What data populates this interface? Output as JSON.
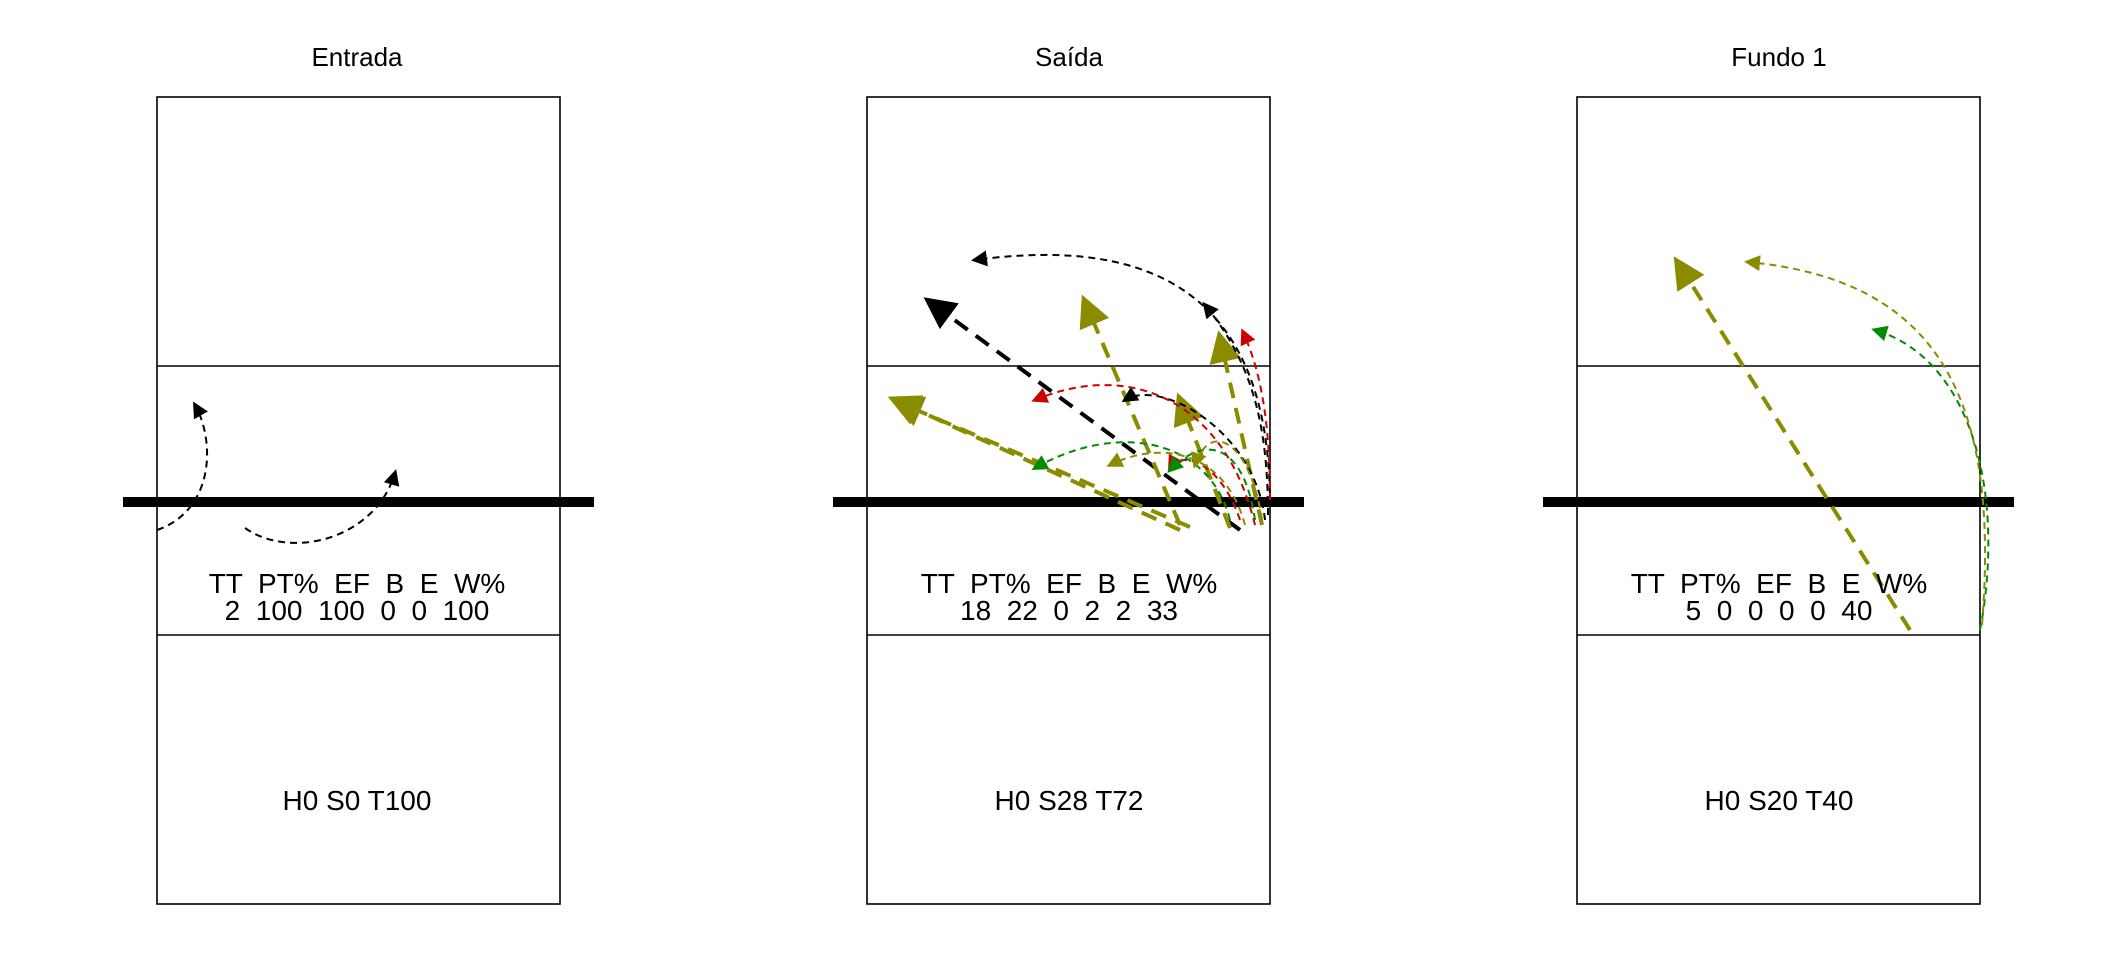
{
  "colors": {
    "black": "#000000",
    "olive": "#8b8b00",
    "green": "#008b00",
    "red": "#cd0000"
  },
  "panels": [
    {
      "title": "Entrada",
      "stats": {
        "headers": "TT  PT%  EF  B  E  W%",
        "values": "2  100  100  0  0  100"
      },
      "zone_label": "H0 S0 T100"
    },
    {
      "title": "Saída",
      "stats": {
        "headers": "TT  PT%  EF  B  E  W%",
        "values": "18  22  0  2  2  33"
      },
      "zone_label": "H0 S28 T72"
    },
    {
      "title": "Fundo 1",
      "stats": {
        "headers": "TT  PT%  EF  B  E  W%",
        "values": "5  0  0  0  0  40"
      },
      "zone_label": "H0 S20 T40"
    }
  ]
}
